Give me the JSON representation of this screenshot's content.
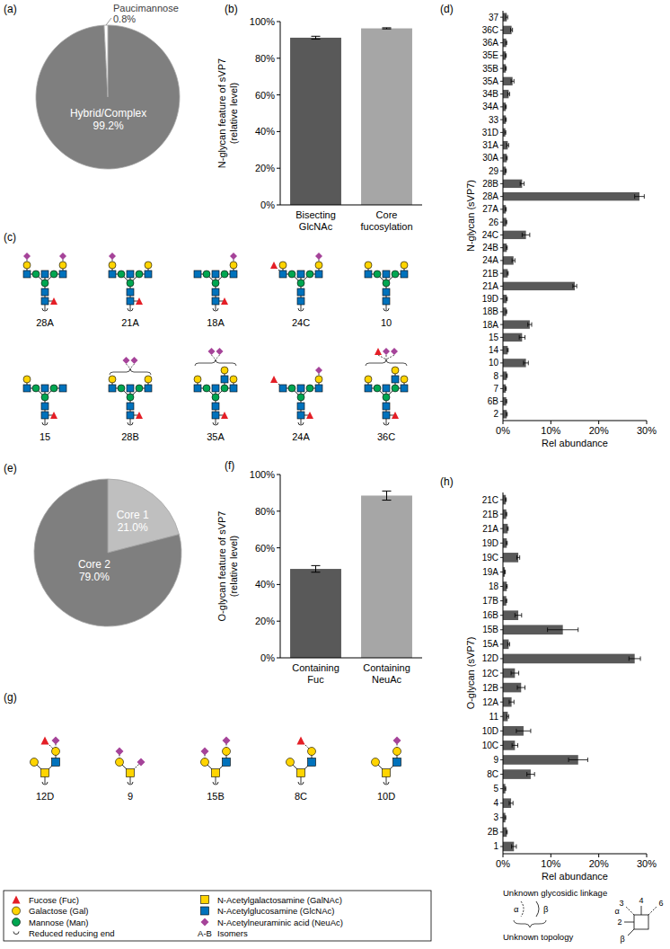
{
  "chart_data": [
    {
      "panel_label": "(a)",
      "type": "pie",
      "categories": [
        "Hybrid/Complex",
        "Paucimannose"
      ],
      "values": [
        99.2,
        0.8
      ],
      "value_labels": [
        "99.2%",
        "0.8%"
      ],
      "colors": [
        "#7f7f7f",
        "#ffffff"
      ]
    },
    {
      "panel_label": "(b)",
      "type": "bar",
      "categories": [
        "Bisecting GlcNAc",
        "Core fucosylation"
      ],
      "values": [
        91.2,
        96.3
      ],
      "error": [
        0.8,
        0.3
      ],
      "colors": [
        "#595959",
        "#a6a6a6"
      ],
      "y_label": "N-glycan feature of sVP7 (relative level)",
      "ylim": [
        0,
        100
      ],
      "yticks": [
        {
          "value": 0,
          "label": "0%"
        },
        {
          "value": 20,
          "label": "20%"
        },
        {
          "value": 40,
          "label": "40%"
        },
        {
          "value": 60,
          "label": "60%"
        },
        {
          "value": 80,
          "label": "80%"
        },
        {
          "value": 100,
          "label": "100%"
        }
      ]
    },
    {
      "panel_label": "(d)",
      "type": "bar",
      "orientation": "horizontal",
      "categories": [
        "37",
        "36C",
        "36A",
        "35E",
        "35B",
        "35A",
        "34B",
        "34A",
        "33",
        "31D",
        "31A",
        "30A",
        "29",
        "28B",
        "28A",
        "27A",
        "26",
        "24C",
        "24B",
        "24A",
        "21B",
        "21A",
        "19D",
        "18B",
        "18A",
        "15",
        "14",
        "10",
        "8",
        "7",
        "6B",
        "2"
      ],
      "values": [
        0.8,
        1.8,
        0.7,
        0.6,
        0.6,
        2.0,
        1.2,
        0.6,
        0.6,
        0.5,
        1.0,
        0.8,
        0.6,
        4.0,
        28.5,
        0.6,
        0.7,
        4.8,
        0.8,
        2.2,
        1.0,
        15.0,
        0.8,
        0.7,
        5.6,
        4.0,
        1.0,
        4.8,
        0.8,
        0.6,
        0.7,
        0.8
      ],
      "error": [
        0.2,
        0.2,
        0.1,
        0.1,
        0.1,
        0.3,
        0.2,
        0.1,
        0.1,
        0.1,
        0.2,
        0.1,
        0.1,
        0.4,
        1.0,
        0.1,
        0.1,
        0.8,
        0.1,
        0.3,
        0.1,
        0.4,
        0.1,
        0.1,
        0.4,
        0.6,
        0.1,
        0.5,
        0.1,
        0.1,
        0.1,
        0.1
      ],
      "color": "#595959",
      "y_label": "N-glycan (sVP7)",
      "x_label": "Rel abundance",
      "xlim": [
        0,
        30
      ],
      "xticks": [
        {
          "value": 0,
          "label": "0%"
        },
        {
          "value": 10,
          "label": "10%"
        },
        {
          "value": 20,
          "label": "20%"
        },
        {
          "value": 30,
          "label": "30%"
        }
      ]
    },
    {
      "panel_label": "(e)",
      "type": "pie",
      "categories": [
        "Core 1",
        "Core 2"
      ],
      "values": [
        21.0,
        79.0
      ],
      "value_labels": [
        "21.0%",
        "79.0%"
      ],
      "colors": [
        "#bfbfbf",
        "#7f7f7f"
      ]
    },
    {
      "panel_label": "(f)",
      "type": "bar",
      "categories": [
        "Containing Fuc",
        "Containing NeuAc"
      ],
      "values": [
        48.5,
        88.5
      ],
      "error": [
        1.8,
        2.5
      ],
      "colors": [
        "#595959",
        "#a6a6a6"
      ],
      "y_label": "O-glycan feature of sVP7 (relative level)",
      "ylim": [
        0,
        100
      ],
      "yticks": [
        {
          "value": 0,
          "label": "0%"
        },
        {
          "value": 20,
          "label": "20%"
        },
        {
          "value": 40,
          "label": "40%"
        },
        {
          "value": 60,
          "label": "60%"
        },
        {
          "value": 80,
          "label": "80%"
        },
        {
          "value": 100,
          "label": "100%"
        }
      ]
    },
    {
      "panel_label": "(h)",
      "type": "bar",
      "orientation": "horizontal",
      "categories": [
        "21C",
        "21B",
        "21A",
        "19D",
        "19C",
        "19A",
        "18",
        "17B",
        "16B",
        "15B",
        "15A",
        "12D",
        "12C",
        "12B",
        "12A",
        "11",
        "10D",
        "10C",
        "9",
        "8C",
        "5",
        "4",
        "3",
        "2B",
        "1"
      ],
      "values": [
        0.6,
        0.7,
        1.0,
        0.8,
        3.2,
        0.4,
        0.8,
        0.7,
        3.2,
        12.5,
        1.2,
        27.5,
        2.5,
        3.8,
        1.8,
        1.0,
        4.3,
        2.5,
        15.7,
        5.8,
        0.5,
        1.7,
        0.5,
        0.8,
        2.3
      ],
      "error": [
        0.1,
        0.1,
        0.1,
        0.1,
        0.3,
        0.1,
        0.1,
        0.1,
        0.7,
        3.2,
        0.2,
        1.2,
        0.8,
        0.8,
        0.5,
        0.2,
        1.5,
        0.6,
        2.0,
        0.8,
        0.1,
        0.4,
        0.1,
        0.1,
        0.5
      ],
      "color": "#595959",
      "y_label": "O-glycan (sVP7)",
      "x_label": "Rel abundance",
      "xlim": [
        0,
        30
      ],
      "xticks": [
        {
          "value": 0,
          "label": "0%"
        },
        {
          "value": 10,
          "label": "10%"
        },
        {
          "value": 20,
          "label": "20%"
        },
        {
          "value": 30,
          "label": "30%"
        }
      ]
    }
  ],
  "structures": [
    {
      "panel_label": "(c)",
      "labels": [
        "28A",
        "21A",
        "18A",
        "24C",
        "10",
        "15",
        "28B",
        "35A",
        "24A",
        "36C"
      ]
    },
    {
      "panel_label": "(g)",
      "labels": [
        "12D",
        "9",
        "15B",
        "8C",
        "10D"
      ]
    }
  ],
  "legend": {
    "items": [
      {
        "label": "Fucose (Fuc)",
        "shape": "triangle",
        "color": "#e41e26"
      },
      {
        "label": "Galactose (Gal)",
        "shape": "circle",
        "color": "#ffd400"
      },
      {
        "label": "Mannose (Man)",
        "shape": "circle",
        "color": "#00a651"
      },
      {
        "label": "Reduced reducing end",
        "shape": "reducing-end"
      },
      {
        "label": "N-Acetylgalactosamine (GalNAc)",
        "shape": "square",
        "color": "#ffd400"
      },
      {
        "label": "N-Acetylglucosamine (GlcNAc)",
        "shape": "square",
        "color": "#0072bc"
      },
      {
        "label": "N-Acetylneuraminic acid (NeuAc)",
        "shape": "diamond",
        "color": "#a54399"
      },
      {
        "label": "Isomers",
        "symbol_text": "A-B"
      }
    ]
  },
  "linkage_legend": {
    "title": "Unknown glycosidic linkage",
    "anomers": [
      "α",
      "β"
    ],
    "topology": "Unknown topology",
    "positions": [
      "3",
      "4",
      "6",
      "2"
    ],
    "diagram_anomers": [
      "α",
      "β"
    ]
  }
}
